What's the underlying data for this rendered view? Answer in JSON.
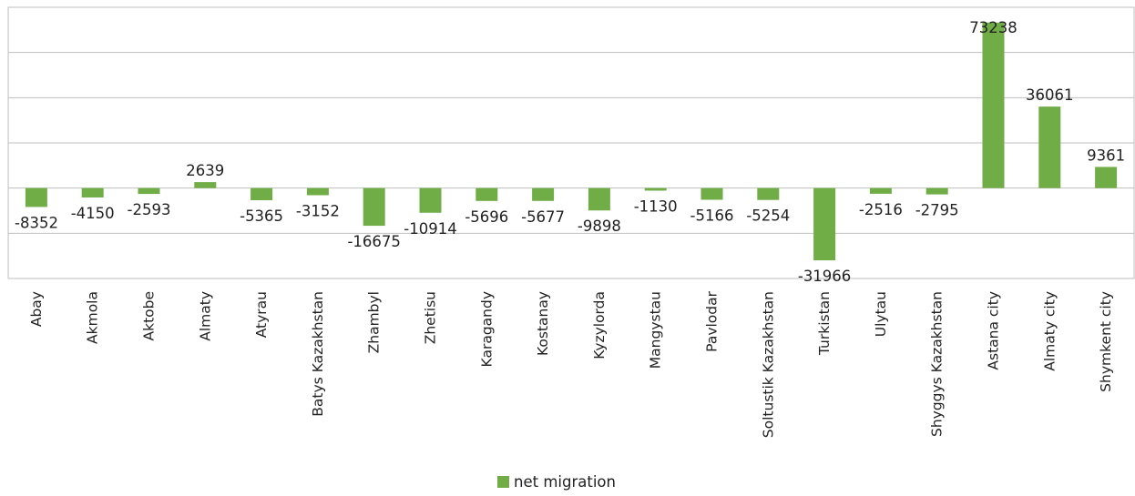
{
  "chart_data": {
    "type": "bar",
    "title": "",
    "xlabel": "",
    "ylabel": "",
    "categories": [
      "Abay",
      "Akmola",
      "Aktobe",
      "Almaty",
      "Atyrau",
      "Batys Kazakhstan",
      "Zhambyl",
      "Zhetisu",
      "Karagandy",
      "Kostanay",
      "Kyzylorda",
      "Mangystau",
      "Pavlodar",
      "Soltustik Kazakhstan",
      "Turkistan",
      "Ulytau",
      "Shyggys Kazakhstan",
      "Astana city",
      "Almaty city",
      "Shymkent city"
    ],
    "series": [
      {
        "name": "net migration",
        "color": "#70ad47",
        "values": [
          -8352,
          -4150,
          -2593,
          2639,
          -5365,
          -3152,
          -16675,
          -10914,
          -5696,
          -5677,
          -9898,
          -1130,
          -5166,
          -5254,
          -31966,
          -2516,
          -2795,
          73238,
          36061,
          9361
        ]
      }
    ],
    "ylim": [
      -40000,
      80000
    ],
    "y_gridline_step": 20000,
    "y_tick_labels_shown": false,
    "grid": true,
    "legend_position": "bottom-center",
    "data_labels": true
  }
}
